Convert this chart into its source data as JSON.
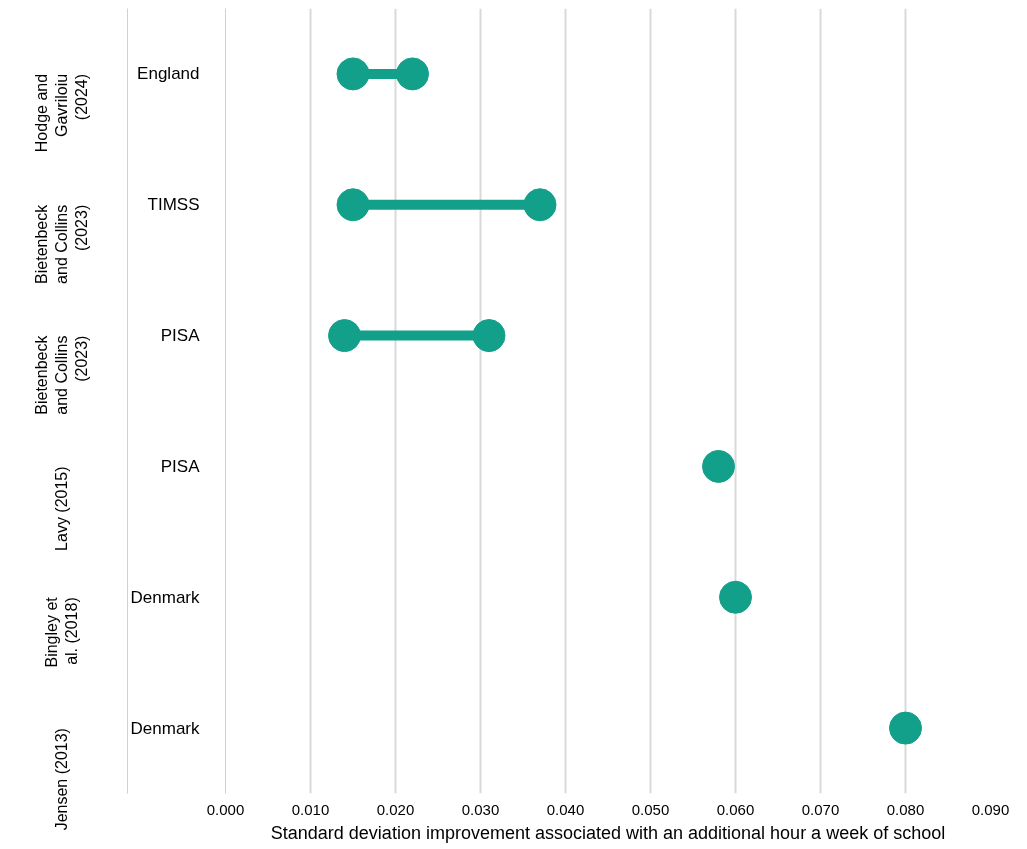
{
  "chart_data": {
    "type": "scatter",
    "orientation": "horizontal",
    "xlabel": "Standard deviation improvement associated with an additional hour a week of school",
    "categories": [
      "England",
      "TIMSS",
      "PISA",
      "PISA",
      "Denmark",
      "Denmark"
    ],
    "annotations": [
      "Hodge and Gavriloiu (2024)",
      "Bietenbeck and Collins (2023)",
      "Bietenbeck and Collins (2023)",
      "Lavy (2015)",
      "Bingley et al. (2018)",
      "Jensen (2013)"
    ],
    "series": [
      {
        "color": "#13a08a",
        "values": [
          0.015,
          0.015,
          0.014,
          0.058,
          0.06,
          0.08
        ]
      },
      {
        "color": "#13a08a",
        "values": [
          0.022,
          0.037,
          0.031,
          null,
          null,
          null
        ]
      }
    ],
    "marker": "circle",
    "grid": "x",
    "xlim": [
      0,
      0.09
    ],
    "xticks": [
      {
        "value": 0,
        "label": "0.000"
      },
      {
        "value": 0.01,
        "label": "0.010"
      },
      {
        "value": 0.02,
        "label": "0.020"
      },
      {
        "value": 0.03,
        "label": "0.030"
      },
      {
        "value": 0.04,
        "label": "0.040"
      },
      {
        "value": 0.05,
        "label": "0.050"
      },
      {
        "value": 0.06,
        "label": "0.060"
      },
      {
        "value": 0.07,
        "label": "0.070"
      },
      {
        "value": 0.08,
        "label": "0.080"
      },
      {
        "value": 0.09,
        "label": "0.090"
      }
    ]
  }
}
